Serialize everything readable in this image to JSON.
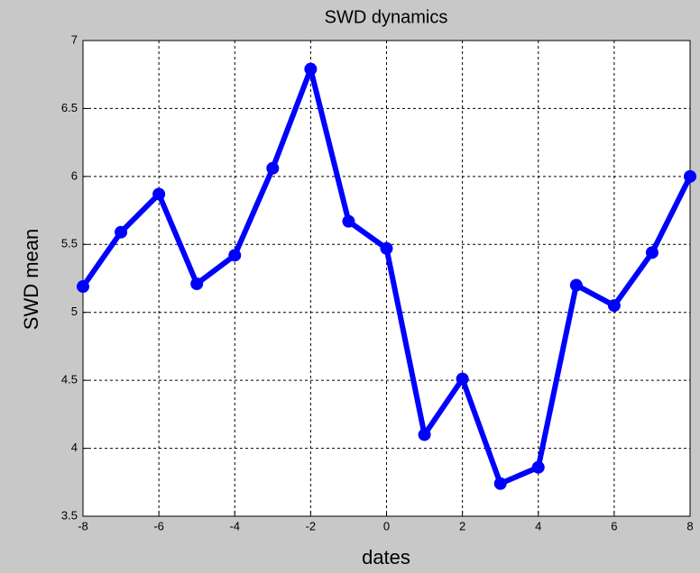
{
  "chart_data": {
    "type": "line",
    "title": "SWD dynamics",
    "x_label": "dates",
    "y_label": "SWD mean",
    "x": [
      -8,
      -7,
      -6,
      -5,
      -4,
      -3,
      -2,
      -1,
      0,
      1,
      2,
      3,
      4,
      5,
      6,
      7,
      8
    ],
    "values": [
      5.19,
      5.59,
      5.87,
      5.21,
      5.42,
      6.06,
      6.79,
      5.67,
      5.47,
      4.1,
      4.51,
      3.74,
      3.86,
      5.2,
      5.05,
      5.44,
      6.0
    ],
    "color": "#0000ff",
    "marker": "circle",
    "xlim": [
      -8,
      8
    ],
    "xticks": [
      -8,
      -6,
      -4,
      -2,
      0,
      2,
      4,
      6,
      8
    ],
    "ylim": [
      3.5,
      7
    ],
    "yticks": [
      3.5,
      4,
      4.5,
      5,
      5.5,
      6,
      6.5,
      7
    ],
    "grid": true
  }
}
